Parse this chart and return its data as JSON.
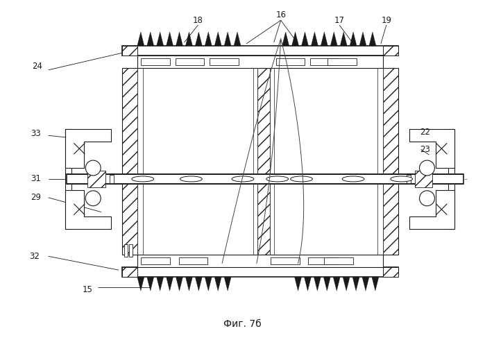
{
  "fig_label": "Фиг. 7б",
  "background_color": "#ffffff",
  "line_color": "#1a1a1a",
  "fig_width": 6.99,
  "fig_height": 4.9,
  "dpi": 100
}
